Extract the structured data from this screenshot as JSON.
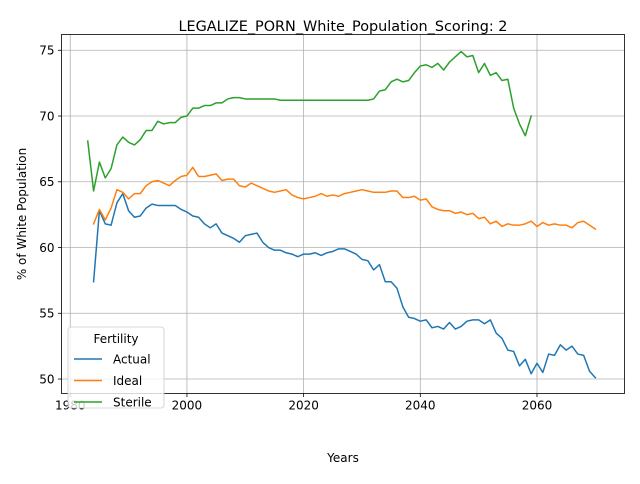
{
  "chart_data": {
    "type": "line",
    "title": "LEGALIZE_PORN_White_Population_Scoring: 2",
    "xlabel": "Years",
    "ylabel": "% of White Population",
    "xlim": [
      1978.65,
      1975.0
    ],
    "ylim": [
      48.9,
      76.2
    ],
    "xticks": [
      1980,
      2000,
      2020,
      2040,
      2060
    ],
    "xtick_labels": [
      "1980",
      "2000",
      "2020",
      "2040",
      "2060"
    ],
    "yticks": [
      50,
      55,
      60,
      65,
      70,
      75
    ],
    "ytick_labels": [
      "50",
      "55",
      "60",
      "65",
      "70",
      "75"
    ],
    "grid": true,
    "legend": {
      "title": "Fertility",
      "location": "lower-left"
    },
    "series": [
      {
        "name": "Actual",
        "color": "#1f77b4",
        "x": [
          1984,
          1985,
          1986,
          1987,
          1988,
          1989,
          1990,
          1991,
          1992,
          1993,
          1994,
          1995,
          1996,
          1997,
          1998,
          1999,
          2000,
          2001,
          2002,
          2003,
          2004,
          2005,
          2006,
          2007,
          2008,
          2009,
          2010,
          2011,
          2012,
          2013,
          2014,
          2015,
          2016,
          2017,
          2018,
          2019,
          2020,
          2021,
          2022,
          2023,
          2024,
          2025,
          2026,
          2027,
          2028,
          2029,
          2030,
          2031,
          2032,
          2033,
          2034,
          2035,
          2036,
          2037,
          2038,
          2039,
          2040,
          2041,
          2042,
          2043,
          2044,
          2045,
          2046,
          2047,
          2048,
          2049,
          2050,
          2051,
          2052,
          2053,
          2054,
          2055,
          2056,
          2057,
          2058,
          2059,
          2060,
          2061,
          2062,
          2063,
          2064,
          2065,
          2066,
          2067,
          2068,
          2069,
          2070
        ],
        "y": [
          57.4,
          62.8,
          61.8,
          61.7,
          63.4,
          64.1,
          62.8,
          62.3,
          62.4,
          63.0,
          63.3,
          63.2,
          63.2,
          63.2,
          63.2,
          62.9,
          62.7,
          62.4,
          62.3,
          61.8,
          61.5,
          61.8,
          61.1,
          60.9,
          60.7,
          60.4,
          60.9,
          61.0,
          61.1,
          60.4,
          60.0,
          59.8,
          59.8,
          59.6,
          59.5,
          59.3,
          59.5,
          59.5,
          59.6,
          59.4,
          59.6,
          59.7,
          59.9,
          59.9,
          59.7,
          59.5,
          59.1,
          59.0,
          58.3,
          58.7,
          57.4,
          57.4,
          56.9,
          55.5,
          54.7,
          54.6,
          54.4,
          54.5,
          53.9,
          54.0,
          53.8,
          54.3,
          53.8,
          54.0,
          54.4,
          54.5,
          54.5,
          54.2,
          54.5,
          53.5,
          53.1,
          52.2,
          52.1,
          51.0,
          51.5,
          50.4,
          51.2,
          50.5,
          51.9,
          51.8,
          52.6,
          52.2,
          52.5,
          51.9,
          51.8,
          50.6,
          50.1
        ]
      },
      {
        "name": "Ideal",
        "color": "#ff7f0e",
        "x": [
          1984,
          1985,
          1986,
          1987,
          1988,
          1989,
          1990,
          1991,
          1992,
          1993,
          1994,
          1995,
          1996,
          1997,
          1998,
          1999,
          2000,
          2001,
          2002,
          2003,
          2004,
          2005,
          2006,
          2007,
          2008,
          2009,
          2010,
          2011,
          2012,
          2013,
          2014,
          2015,
          2016,
          2017,
          2018,
          2019,
          2020,
          2021,
          2022,
          2023,
          2024,
          2025,
          2026,
          2027,
          2028,
          2029,
          2030,
          2031,
          2032,
          2033,
          2034,
          2035,
          2036,
          2037,
          2038,
          2039,
          2040,
          2041,
          2042,
          2043,
          2044,
          2045,
          2046,
          2047,
          2048,
          2049,
          2050,
          2051,
          2052,
          2053,
          2054,
          2055,
          2056,
          2057,
          2058,
          2059,
          2060,
          2061,
          2062,
          2063,
          2064,
          2065,
          2066,
          2067,
          2068,
          2069,
          2070
        ],
        "y": [
          61.8,
          62.9,
          62.1,
          63.0,
          64.4,
          64.2,
          63.7,
          64.1,
          64.1,
          64.7,
          65.0,
          65.1,
          64.9,
          64.7,
          65.1,
          65.4,
          65.5,
          66.1,
          65.4,
          65.4,
          65.5,
          65.6,
          65.1,
          65.2,
          65.2,
          64.7,
          64.6,
          64.9,
          64.7,
          64.5,
          64.3,
          64.2,
          64.3,
          64.4,
          64.0,
          63.8,
          63.7,
          63.8,
          63.9,
          64.1,
          63.9,
          64.0,
          63.9,
          64.1,
          64.2,
          64.3,
          64.4,
          64.3,
          64.2,
          64.2,
          64.2,
          64.3,
          64.3,
          63.8,
          63.8,
          63.9,
          63.6,
          63.7,
          63.1,
          62.9,
          62.8,
          62.8,
          62.6,
          62.7,
          62.5,
          62.6,
          62.2,
          62.3,
          61.8,
          62.0,
          61.6,
          61.8,
          61.7,
          61.7,
          61.8,
          62.0,
          61.6,
          61.9,
          61.7,
          61.8,
          61.7,
          61.7,
          61.5,
          61.9,
          62.0,
          61.7,
          61.4
        ]
      },
      {
        "name": "Sterile",
        "color": "#2ca02c",
        "x": [
          1983,
          1984,
          1985,
          1986,
          1987,
          1988,
          1989,
          1990,
          1991,
          1992,
          1993,
          1994,
          1995,
          1996,
          1997,
          1998,
          1999,
          2000,
          2001,
          2002,
          2003,
          2004,
          2005,
          2006,
          2007,
          2008,
          2009,
          2010,
          2011,
          2012,
          2013,
          2014,
          2015,
          2016,
          2017,
          2018,
          2019,
          2020,
          2021,
          2022,
          2023,
          2024,
          2025,
          2026,
          2027,
          2028,
          2029,
          2030,
          2031,
          2032,
          2033,
          2034,
          2035,
          2036,
          2037,
          2038,
          2039,
          2040,
          2041,
          2042,
          2043,
          2044,
          2045,
          2046,
          2047,
          2048,
          2049,
          2050,
          2051,
          2052,
          2053,
          2054,
          2055,
          2056,
          2057,
          2058,
          2059
        ],
        "y": [
          68.1,
          64.3,
          66.5,
          65.3,
          66.0,
          67.8,
          68.4,
          68.0,
          67.8,
          68.2,
          68.9,
          68.9,
          69.6,
          69.4,
          69.5,
          69.5,
          69.9,
          70.0,
          70.6,
          70.6,
          70.8,
          70.8,
          71.0,
          71.0,
          71.3,
          71.4,
          71.4,
          71.3,
          71.3,
          71.3,
          71.3,
          71.3,
          71.3,
          71.2,
          71.2,
          71.2,
          71.2,
          71.2,
          71.2,
          71.2,
          71.2,
          71.2,
          71.2,
          71.2,
          71.2,
          71.2,
          71.2,
          71.2,
          71.2,
          71.3,
          71.9,
          72.0,
          72.6,
          72.8,
          72.6,
          72.7,
          73.3,
          73.8,
          73.9,
          73.7,
          74.0,
          73.5,
          74.1,
          74.5,
          74.9,
          74.5,
          74.6,
          73.3,
          74.0,
          73.1,
          73.3,
          72.7,
          72.8,
          70.6,
          69.4,
          68.5,
          70.0
        ]
      }
    ]
  }
}
